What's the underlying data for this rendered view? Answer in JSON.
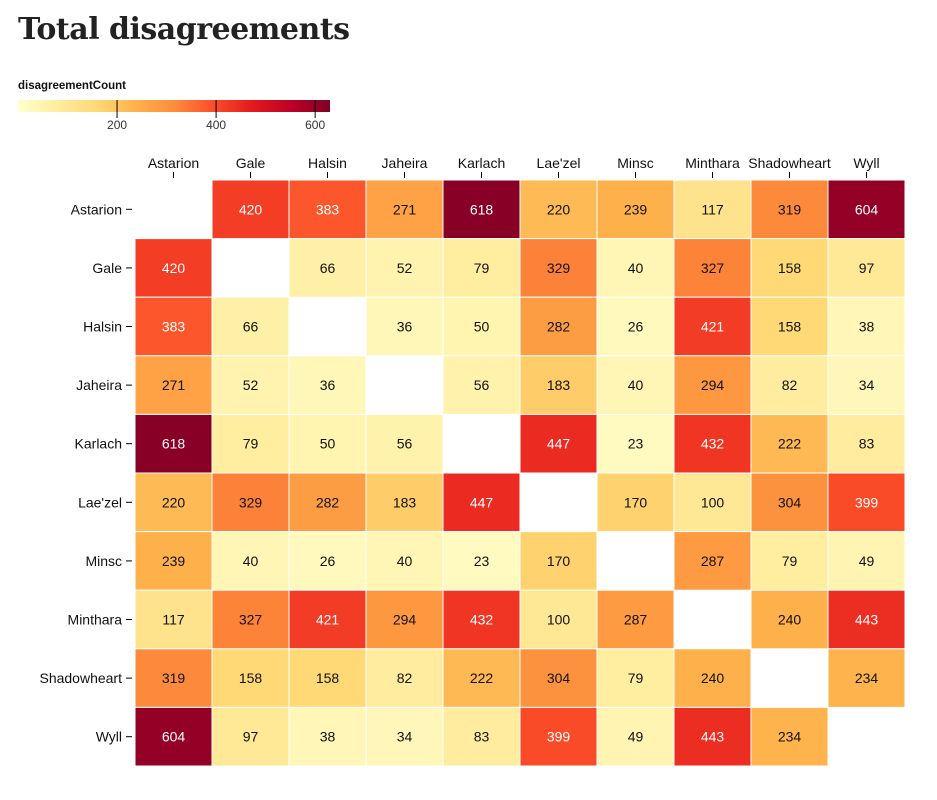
{
  "chart_data": {
    "type": "heatmap",
    "title": "Total disagreements",
    "legend": {
      "label": "disagreementCount",
      "domain": [
        0,
        630
      ],
      "ticks": [
        200,
        400,
        600
      ],
      "colors": [
        "#ffffcc",
        "#ffeda0",
        "#fed976",
        "#feb24c",
        "#fd8d3c",
        "#fc4e2a",
        "#e31a1c",
        "#bd0026",
        "#800026"
      ]
    },
    "categories": [
      "Astarion",
      "Gale",
      "Halsin",
      "Jaheira",
      "Karlach",
      "Lae'zel",
      "Minsc",
      "Minthara",
      "Shadowheart",
      "Wyll"
    ],
    "values": [
      [
        null,
        420,
        383,
        271,
        618,
        220,
        239,
        117,
        319,
        604
      ],
      [
        420,
        null,
        66,
        52,
        79,
        329,
        40,
        327,
        158,
        97
      ],
      [
        383,
        66,
        null,
        36,
        50,
        282,
        26,
        421,
        158,
        38
      ],
      [
        271,
        52,
        36,
        null,
        56,
        183,
        40,
        294,
        82,
        34
      ],
      [
        618,
        79,
        50,
        56,
        null,
        447,
        23,
        432,
        222,
        83
      ],
      [
        220,
        329,
        282,
        183,
        447,
        null,
        170,
        100,
        304,
        399
      ],
      [
        239,
        40,
        26,
        40,
        23,
        170,
        null,
        287,
        79,
        49
      ],
      [
        117,
        327,
        421,
        294,
        432,
        100,
        287,
        null,
        240,
        443
      ],
      [
        319,
        158,
        158,
        82,
        222,
        304,
        79,
        240,
        null,
        234
      ],
      [
        604,
        97,
        38,
        34,
        83,
        399,
        49,
        443,
        234,
        null
      ]
    ]
  }
}
